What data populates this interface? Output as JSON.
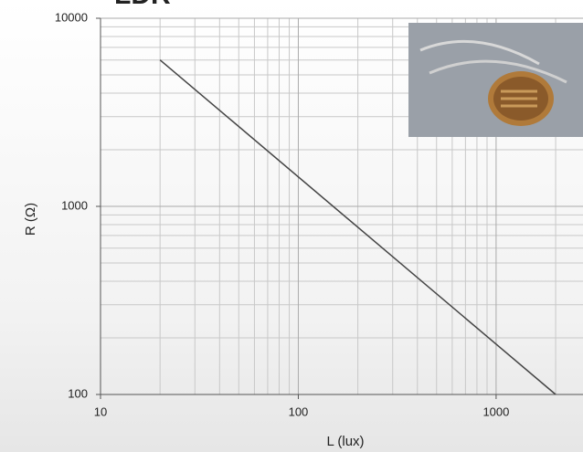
{
  "chart_data": {
    "type": "line",
    "title": "LDR",
    "x_label": "L (lux)",
    "y_label": "R (Ω)",
    "log_x": true,
    "log_y": true,
    "grid": true,
    "minor_grid": true,
    "xlim": [
      10,
      2750
    ],
    "ylim": [
      100,
      10000
    ],
    "xticks": [
      10,
      100,
      1000
    ],
    "yticks": [
      100,
      1000,
      10000
    ],
    "series": [
      {
        "color": "#444444",
        "x": [
          20,
          2000
        ],
        "values": [
          6000,
          100
        ]
      }
    ]
  }
}
